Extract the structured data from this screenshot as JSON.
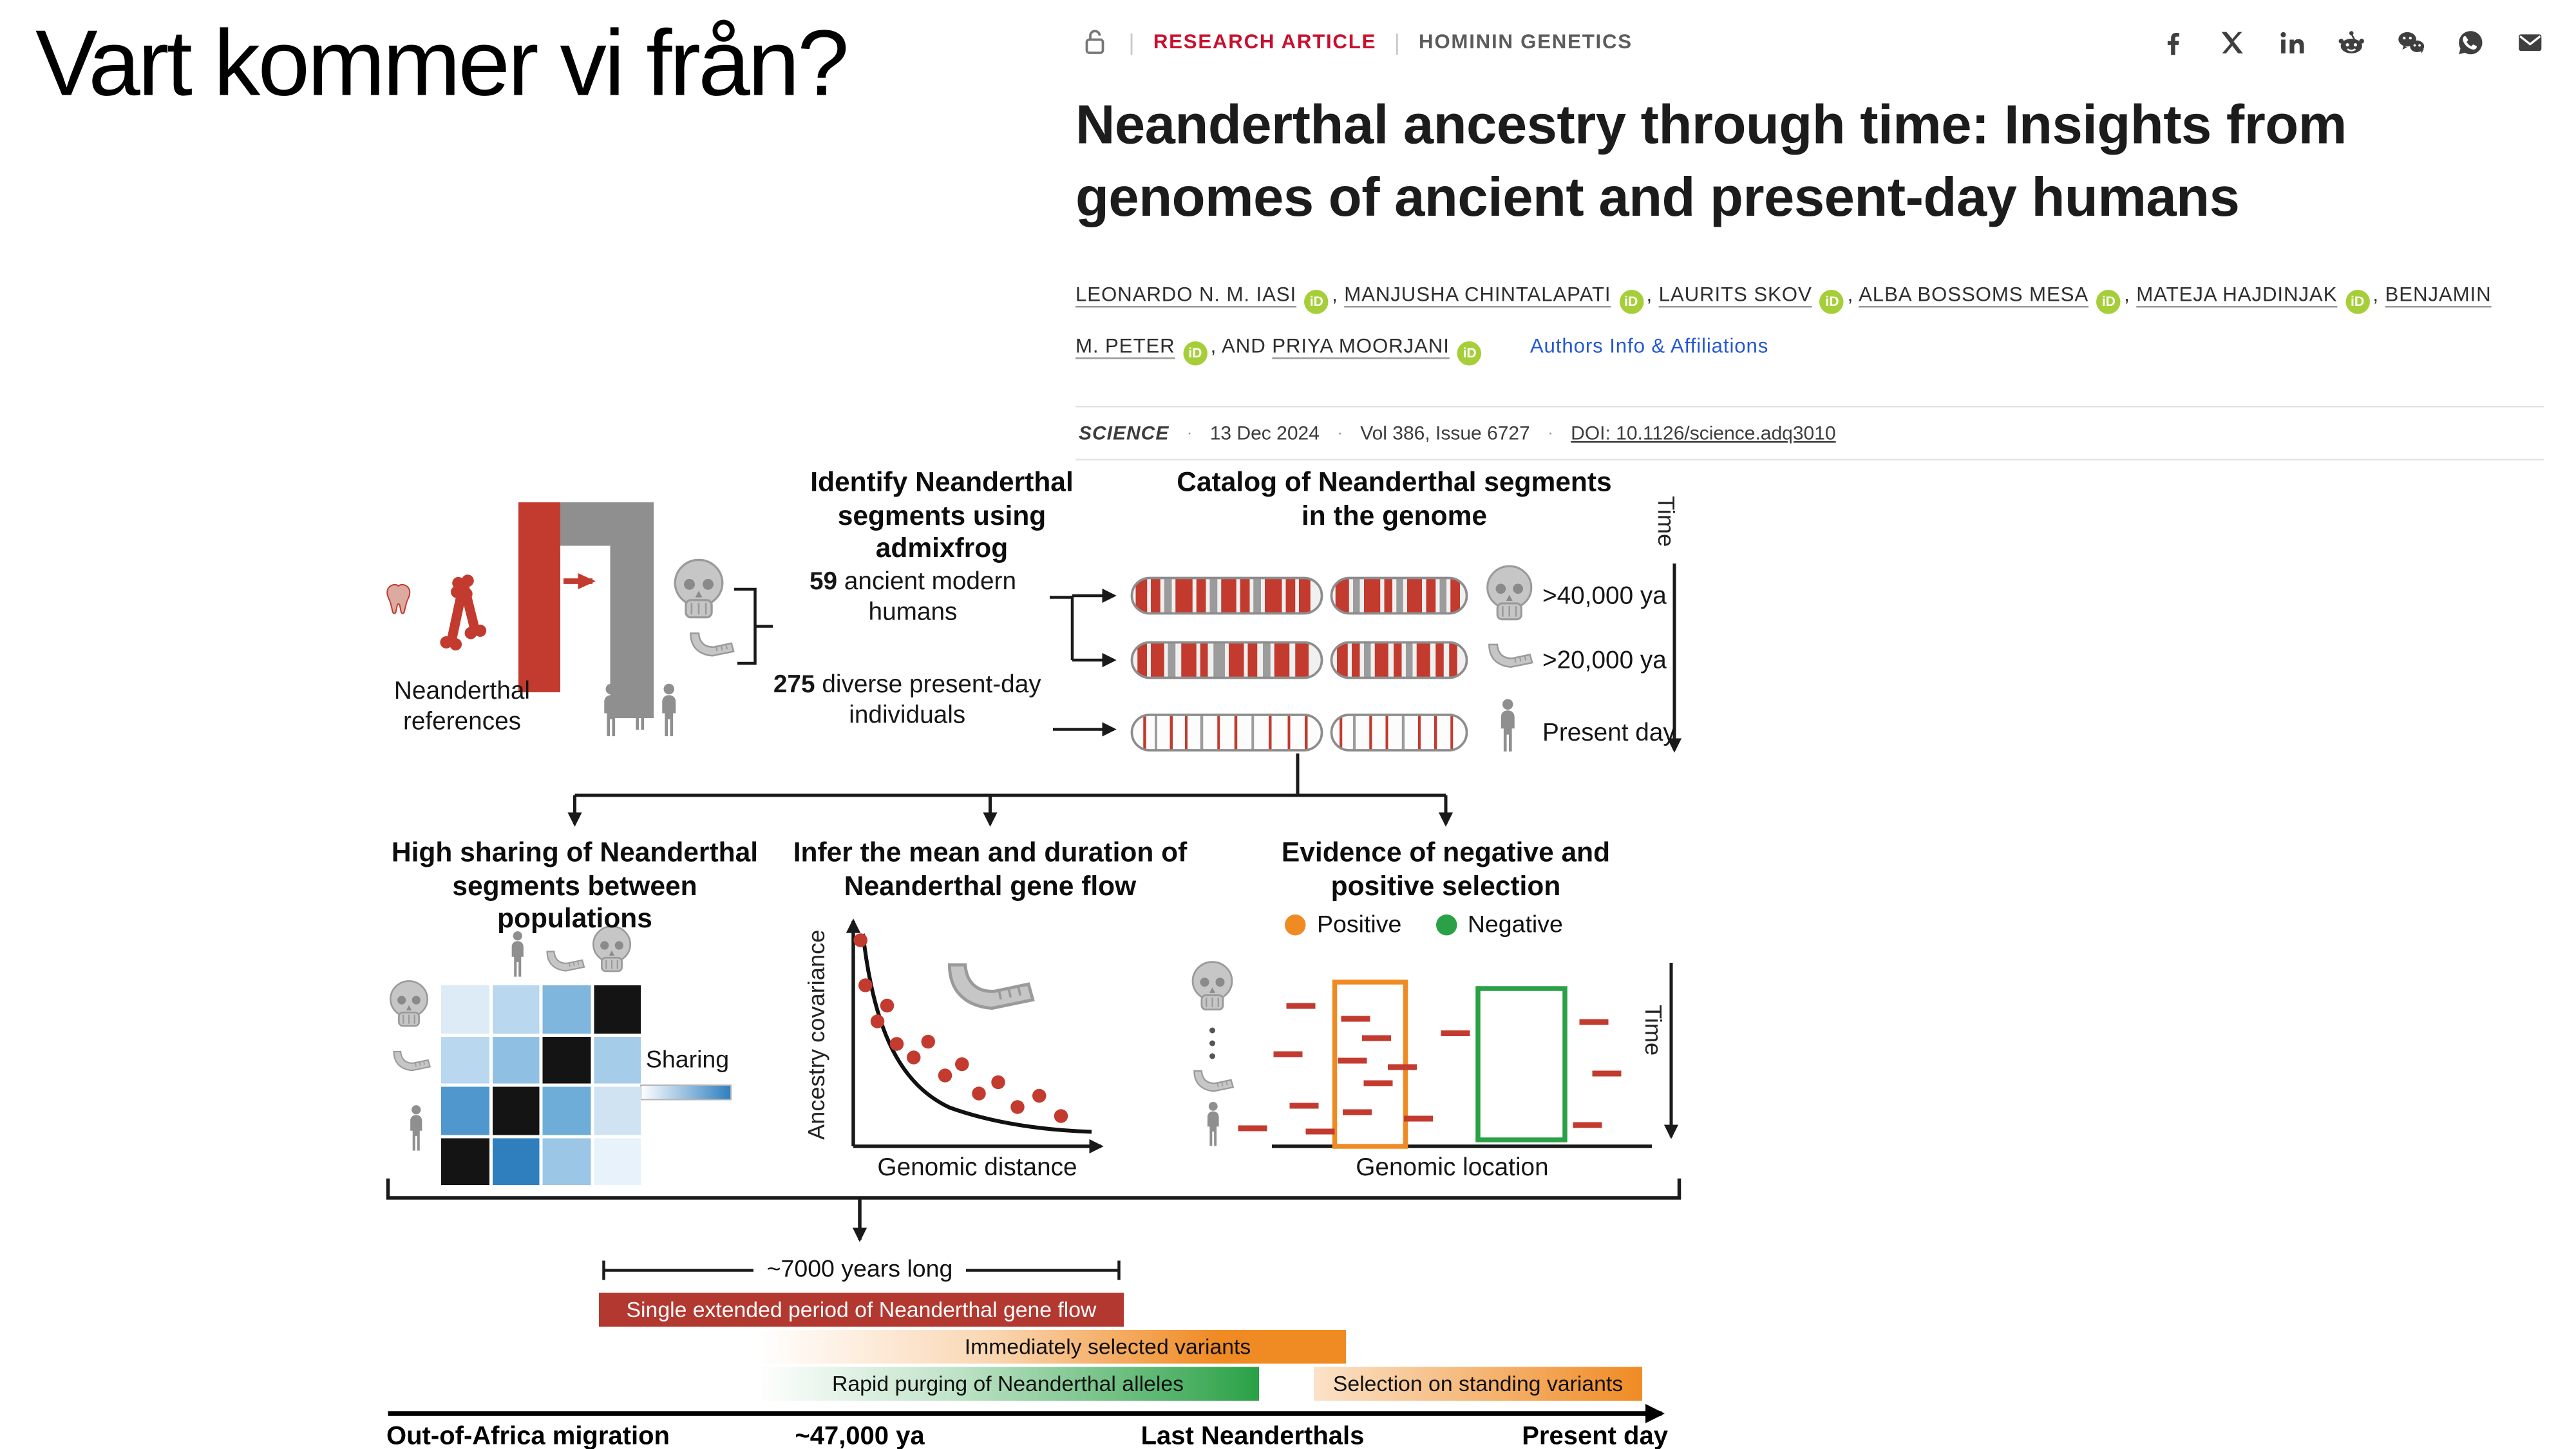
{
  "slide": {
    "title": "Vart kommer vi från?"
  },
  "article": {
    "kicker": {
      "sep": "|",
      "type": "RESEARCH ARTICLE",
      "section": "HOMININ GENETICS"
    },
    "social_icons": [
      "facebook",
      "x",
      "linkedin",
      "reddit",
      "wechat",
      "whatsapp",
      "email"
    ],
    "title": "Neanderthal ancestry through time: Insights from genomes of ancient and present-day humans",
    "authors": [
      "LEONARDO N. M. IASI",
      "MANJUSHA CHINTALAPATI",
      "LAURITS SKOV",
      "ALBA BOSSOMS MESA",
      "MATEJA HAJDINJAK",
      "BENJAMIN M. PETER",
      "PRIYA MOORJANI"
    ],
    "authors_and": "AND",
    "orcid_label": "iD",
    "affiliations_link": "Authors Info & Affiliations",
    "meta": {
      "journal": "SCIENCE",
      "sep": "·",
      "date": "13 Dec 2024",
      "volume": "Vol 386, Issue 6727",
      "doi": "DOI: 10.1126/science.adq3010"
    }
  },
  "figure": {
    "colors": {
      "red": "#c23b2e",
      "gray_band": "#9c9c9c",
      "orange": "#f08b24",
      "green": "#2aa146"
    },
    "identify": {
      "title": "Identify Neanderthal segments using admixfrog",
      "references_label": "Neanderthal references",
      "ancient_count": "59",
      "ancient_label": " ancient modern humans",
      "present_count": "275",
      "present_label": " diverse present-day individuals"
    },
    "catalog": {
      "title": "Catalog of Neanderthal segments in the genome",
      "time_label": "Time",
      "rows": [
        {
          "icon": "skull",
          "label": ">40,000 ya"
        },
        {
          "icon": "jaw",
          "label": ">20,000 ya"
        },
        {
          "icon": "human",
          "label": "Present day"
        }
      ],
      "chromosomes": [
        [
          [
            0,
            0.02,
            0.06,
            "r"
          ],
          [
            0,
            0.1,
            0.05,
            "r"
          ],
          [
            0,
            0.17,
            0.04,
            "g"
          ],
          [
            0,
            0.23,
            0.09,
            "r"
          ],
          [
            0,
            0.34,
            0.05,
            "r"
          ],
          [
            0,
            0.41,
            0.04,
            "g"
          ],
          [
            0,
            0.47,
            0.08,
            "r"
          ],
          [
            0,
            0.57,
            0.05,
            "r"
          ],
          [
            0,
            0.64,
            0.04,
            "g"
          ],
          [
            0,
            0.7,
            0.09,
            "r"
          ],
          [
            0,
            0.81,
            0.05,
            "r"
          ],
          [
            0,
            0.88,
            0.06,
            "r"
          ],
          [
            1,
            0.03,
            0.1,
            "r"
          ],
          [
            1,
            0.16,
            0.05,
            "g"
          ],
          [
            1,
            0.24,
            0.12,
            "r"
          ],
          [
            1,
            0.39,
            0.06,
            "r"
          ],
          [
            1,
            0.48,
            0.05,
            "g"
          ],
          [
            1,
            0.56,
            0.11,
            "r"
          ],
          [
            1,
            0.7,
            0.07,
            "r"
          ],
          [
            1,
            0.8,
            0.05,
            "g"
          ],
          [
            1,
            0.88,
            0.07,
            "r"
          ]
        ],
        [
          [
            0,
            0.03,
            0.05,
            "r"
          ],
          [
            0,
            0.1,
            0.07,
            "r"
          ],
          [
            0,
            0.19,
            0.04,
            "g"
          ],
          [
            0,
            0.26,
            0.08,
            "r"
          ],
          [
            0,
            0.36,
            0.04,
            "r"
          ],
          [
            0,
            0.43,
            0.06,
            "g"
          ],
          [
            0,
            0.51,
            0.08,
            "r"
          ],
          [
            0,
            0.61,
            0.05,
            "r"
          ],
          [
            0,
            0.69,
            0.04,
            "g"
          ],
          [
            0,
            0.75,
            0.08,
            "r"
          ],
          [
            0,
            0.86,
            0.07,
            "r"
          ],
          [
            1,
            0.04,
            0.08,
            "r"
          ],
          [
            1,
            0.15,
            0.06,
            "r"
          ],
          [
            1,
            0.24,
            0.05,
            "g"
          ],
          [
            1,
            0.32,
            0.1,
            "r"
          ],
          [
            1,
            0.46,
            0.06,
            "r"
          ],
          [
            1,
            0.55,
            0.05,
            "g"
          ],
          [
            1,
            0.63,
            0.1,
            "r"
          ],
          [
            1,
            0.77,
            0.06,
            "r"
          ],
          [
            1,
            0.87,
            0.06,
            "r"
          ]
        ],
        [
          [
            0,
            0.06,
            0.015,
            "r"
          ],
          [
            0,
            0.12,
            0.012,
            "g"
          ],
          [
            0,
            0.2,
            0.015,
            "r"
          ],
          [
            0,
            0.28,
            0.012,
            "r"
          ],
          [
            0,
            0.36,
            0.015,
            "g"
          ],
          [
            0,
            0.45,
            0.012,
            "r"
          ],
          [
            0,
            0.54,
            0.015,
            "r"
          ],
          [
            0,
            0.63,
            0.012,
            "g"
          ],
          [
            0,
            0.72,
            0.015,
            "r"
          ],
          [
            0,
            0.82,
            0.012,
            "r"
          ],
          [
            0,
            0.91,
            0.015,
            "r"
          ],
          [
            1,
            0.06,
            0.02,
            "r"
          ],
          [
            1,
            0.16,
            0.015,
            "g"
          ],
          [
            1,
            0.28,
            0.02,
            "r"
          ],
          [
            1,
            0.4,
            0.015,
            "r"
          ],
          [
            1,
            0.52,
            0.02,
            "g"
          ],
          [
            1,
            0.64,
            0.015,
            "r"
          ],
          [
            1,
            0.76,
            0.02,
            "r"
          ],
          [
            1,
            0.88,
            0.015,
            "r"
          ]
        ]
      ]
    },
    "sharing": {
      "title": "High sharing of Neanderthal segments between populations",
      "legend": "Sharing",
      "matrix": [
        [
          "#dcebf6",
          "#b9d7ee",
          "#7fb6de",
          "#141414"
        ],
        [
          "#b9d7ee",
          "#8fc0e4",
          "#141414",
          "#a5cce9"
        ],
        [
          "#4f97cc",
          "#141414",
          "#6fadd9",
          "#cfe3f3"
        ],
        [
          "#141414",
          "#2f7fbf",
          "#9cc6e6",
          "#e8f2fa"
        ]
      ]
    },
    "geneflow": {
      "title": "Infer the mean and duration of Neanderthal gene flow",
      "ylabel": "Ancestry covariance",
      "xlabel": "Genomic distance",
      "points": [
        [
          0.03,
          0.1
        ],
        [
          0.05,
          0.3
        ],
        [
          0.1,
          0.46
        ],
        [
          0.14,
          0.39
        ],
        [
          0.18,
          0.56
        ],
        [
          0.25,
          0.62
        ],
        [
          0.31,
          0.55
        ],
        [
          0.38,
          0.7
        ],
        [
          0.45,
          0.65
        ],
        [
          0.52,
          0.78
        ],
        [
          0.6,
          0.73
        ],
        [
          0.68,
          0.84
        ],
        [
          0.77,
          0.79
        ],
        [
          0.86,
          0.88
        ]
      ]
    },
    "selection": {
      "title": "Evidence of negative and positive selection",
      "legend": [
        {
          "label": "Positive",
          "color": "#f08b24"
        },
        {
          "label": "Negative",
          "color": "#2aa146"
        }
      ],
      "xlabel": "Genomic location",
      "time_label": "Time",
      "dashes": [
        [
          799,
          623
        ],
        [
          791,
          653
        ],
        [
          801,
          685
        ],
        [
          811,
          701
        ],
        [
          833,
          631
        ],
        [
          846,
          643
        ],
        [
          831,
          657
        ],
        [
          847,
          671
        ],
        [
          834,
          689
        ],
        [
          862,
          661
        ],
        [
          872,
          693
        ],
        [
          895,
          640
        ],
        [
          981,
          633
        ],
        [
          989,
          665
        ],
        [
          977,
          697
        ],
        [
          769,
          699
        ]
      ]
    },
    "timeline": {
      "duration": "~7000 years long",
      "bars": [
        {
          "label": "Single extended period of Neanderthal gene flow",
          "color": "#b23830"
        },
        {
          "label": "Immediately selected variants",
          "color": "#f08b24"
        },
        {
          "label": "Rapid purging of Neanderthal alleles",
          "color": "#2aa146"
        },
        {
          "label": "Selection on standing variants",
          "color": "#f08b24"
        }
      ],
      "axis": [
        "Out-of-Africa migration",
        "~47,000 ya",
        "Last Neanderthals",
        "Present day"
      ]
    }
  }
}
